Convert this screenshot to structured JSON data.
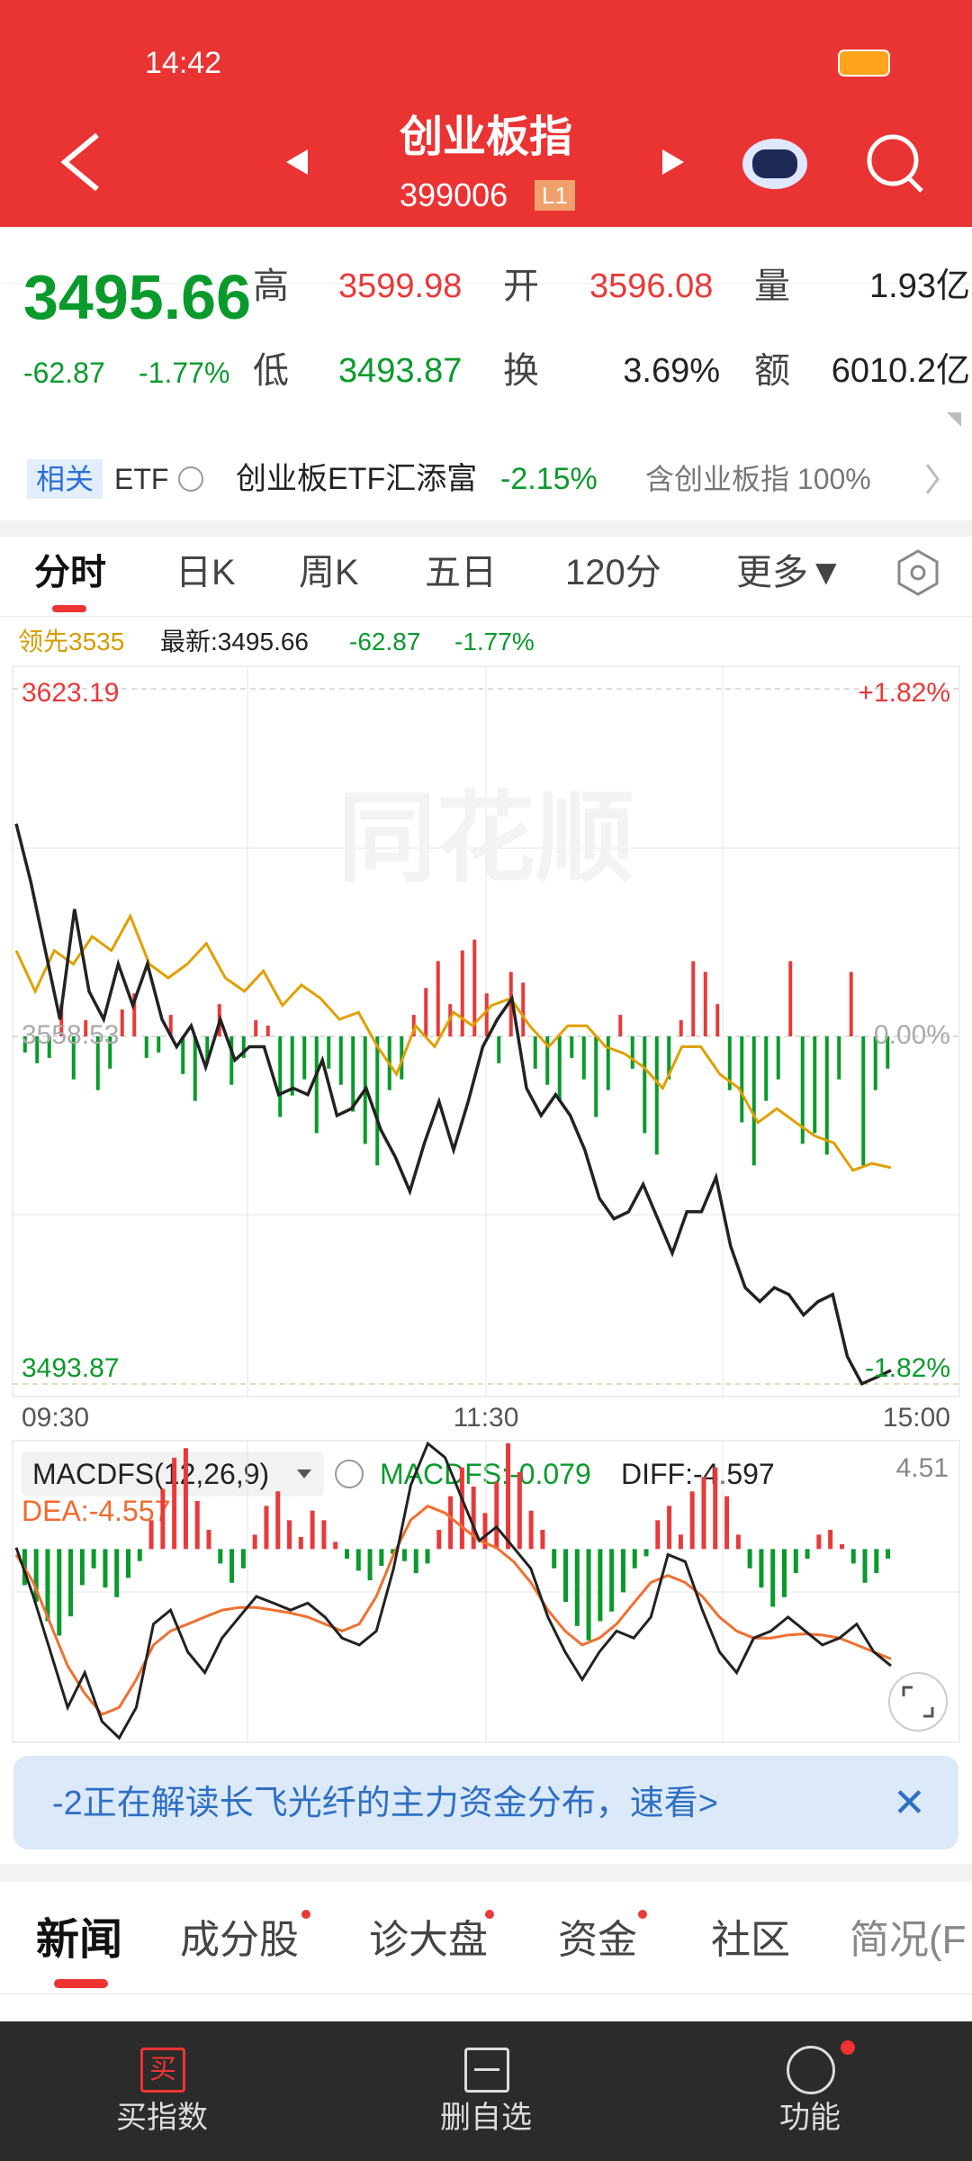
{
  "status_bar": {
    "time": "14:42"
  },
  "header": {
    "title": "创业板指",
    "code": "399006",
    "badge": "L1"
  },
  "quote": {
    "price": "3495.66",
    "change": "-62.87",
    "change_pct": "-1.77%",
    "fields": [
      {
        "label": "高",
        "value": "3599.98"
      },
      {
        "label": "开",
        "value": "3596.08"
      },
      {
        "label": "量",
        "value": "1.93亿"
      },
      {
        "label": "低",
        "value": "3493.87"
      },
      {
        "label": "换",
        "value": "3.69%"
      },
      {
        "label": "额",
        "value": "6010.2亿"
      }
    ]
  },
  "etf": {
    "tag": "相关",
    "label": "ETF",
    "fund": "创业板ETF汇添富",
    "fund_change": "-2.15%",
    "contains": "含创业板指 100%"
  },
  "tabs": [
    "分时",
    "日K",
    "周K",
    "五日",
    "120分",
    "更多▼"
  ],
  "legend": {
    "lead": "领先3535",
    "latest": "最新:3495.66",
    "change": "-62.87",
    "pct": "-1.77%"
  },
  "chart": {
    "watermark": "同花顺",
    "ylim": [
      3493.87,
      3623.19
    ],
    "price_ticks": [
      3623.19,
      3558.53,
      3493.87
    ],
    "pct_ticks": [
      "+1.82%",
      "0.00%",
      "-1.82%"
    ],
    "time_labels": [
      "09:30",
      "11:30",
      "15:00"
    ],
    "price_line": [
      3598.1,
      3587.3,
      3574.5,
      3561.7,
      3582.2,
      3566.9,
      3561.7,
      3572.0,
      3564.3,
      3572.0,
      3561.7,
      3556.6,
      3560.5,
      3552.8,
      3561.7,
      3554.1,
      3556.6,
      3556.6,
      3547.7,
      3548.9,
      3547.7,
      3554.1,
      3543.8,
      3545.1,
      3548.9,
      3541.2,
      3536.1,
      3529.7,
      3538.7,
      3546.4,
      3537.4,
      3546.4,
      3556.6,
      3561.7,
      3565.6,
      3548.9,
      3543.8,
      3547.7,
      3543.8,
      3537.4,
      3528.4,
      3524.6,
      3525.9,
      3531.0,
      3524.6,
      3518.2,
      3525.9,
      3525.9,
      3532.3,
      3519.5,
      3511.8,
      3509.2,
      3511.8,
      3510.5,
      3506.7,
      3509.2,
      3510.5,
      3499.0,
      3493.9,
      3495.1,
      3496.4
    ],
    "lead_line": [
      3574.5,
      3566.9,
      3574.5,
      3572.0,
      3577.1,
      3574.5,
      3580.9,
      3572.0,
      3569.4,
      3572.0,
      3575.8,
      3569.4,
      3566.9,
      3570.7,
      3564.3,
      3568.1,
      3565.6,
      3561.7,
      3563.0,
      3556.6,
      3551.5,
      3560.5,
      3556.6,
      3563.0,
      3560.5,
      3564.3,
      3565.6,
      3560.5,
      3556.6,
      3560.5,
      3560.5,
      3556.6,
      3555.3,
      3552.8,
      3548.9,
      3556.6,
      3556.6,
      3551.5,
      3548.9,
      3542.5,
      3545.1,
      3542.5,
      3540.0,
      3538.7,
      3533.6,
      3534.9,
      3534.1
    ],
    "bars": [
      -3,
      -5,
      -4,
      6,
      -8,
      3,
      -10,
      -6,
      5,
      8,
      -4,
      -3,
      4,
      -7,
      -12,
      -5,
      6,
      -9,
      -4,
      3,
      2,
      -15,
      -11,
      -8,
      -18,
      -6,
      -9,
      -14,
      -20,
      -24,
      -10,
      -8,
      4,
      9,
      14,
      6,
      16,
      18,
      8,
      -5,
      12,
      10,
      -6,
      -9,
      -12,
      -4,
      -8,
      -15,
      -10,
      4,
      -6,
      -18,
      -22,
      -8,
      3,
      14,
      12,
      6,
      -10,
      -16,
      -24,
      -12,
      -8,
      14,
      -20,
      -18,
      -22,
      -8,
      12,
      -24,
      -10,
      -6
    ]
  },
  "macd": {
    "title": "MACDFS(12,26,9)",
    "macd_label": "MACDFS:-0.079",
    "diff_label": "DIFF:-4.597",
    "dea_label": "DEA:-4.557",
    "ylim": [
      -8.04,
      4.51
    ],
    "bars": [
      -1.5,
      -2.2,
      -3.0,
      -3.6,
      -2.8,
      -1.5,
      -0.8,
      -1.6,
      -2.0,
      -1.2,
      -0.5,
      1.2,
      2.5,
      3.8,
      4.2,
      2.0,
      0.8,
      -0.6,
      -1.4,
      -0.8,
      0.6,
      1.8,
      2.4,
      1.2,
      0.5,
      1.6,
      1.2,
      0.3,
      -0.4,
      -0.9,
      -1.3,
      -0.7,
      -0.2,
      -0.5,
      -1.0,
      -0.6,
      0.8,
      2.2,
      3.4,
      2.6,
      1.5,
      2.8,
      4.4,
      3.2,
      1.6,
      0.8,
      -0.8,
      -2.2,
      -3.2,
      -3.8,
      -3.0,
      -2.6,
      -1.8,
      -0.8,
      -0.3,
      1.2,
      1.8,
      0.6,
      2.4,
      3.0,
      3.4,
      2.2,
      0.6,
      -0.8,
      -1.6,
      -2.4,
      -2.0,
      -1.0,
      -0.4,
      0.6,
      0.8,
      0.2,
      -0.6,
      -1.4,
      -1.0,
      -0.4
    ],
    "diff": [
      0.06,
      -1.97,
      -4.28,
      -6.59,
      -5.14,
      -7.17,
      -7.86,
      -6.59,
      -3.12,
      -2.54,
      -4.28,
      -5.14,
      -3.7,
      -2.83,
      -1.97,
      -2.25,
      -2.54,
      -2.25,
      -2.83,
      -3.7,
      -3.99,
      -3.41,
      -0.81,
      2.66,
      4.39,
      3.81,
      2.08,
      0.35,
      0.92,
      0.06,
      -0.81,
      -2.83,
      -4.28,
      -5.43,
      -4.28,
      -3.41,
      -3.7,
      -2.83,
      -0.23,
      -0.52,
      -2.54,
      -4.28,
      -5.14,
      -3.7,
      -3.41,
      -2.83,
      -3.41,
      -3.99,
      -3.7,
      -3.12,
      -4.28,
      -4.86
    ],
    "dea": [
      -0.23,
      -1.39,
      -3.12,
      -4.86,
      -6.01,
      -6.88,
      -6.59,
      -5.43,
      -3.99,
      -3.41,
      -3.12,
      -2.83,
      -2.54,
      -2.43,
      -2.43,
      -2.54,
      -2.66,
      -2.83,
      -3.12,
      -3.41,
      -3.12,
      -1.97,
      -0.23,
      1.21,
      1.79,
      1.5,
      0.92,
      0.35,
      0.06,
      -0.52,
      -1.39,
      -2.54,
      -3.41,
      -3.99,
      -3.7,
      -3.12,
      -2.25,
      -1.39,
      -1.1,
      -1.39,
      -1.97,
      -2.83,
      -3.41,
      -3.7,
      -3.7,
      -3.58,
      -3.53,
      -3.58,
      -3.7,
      -3.99,
      -4.28,
      -4.57
    ]
  },
  "banner": {
    "text": "-2正在解读长飞光纤的主力资金分布，速看>"
  },
  "news_tabs": [
    "新闻",
    "成分股",
    "诊大盘",
    "资金",
    "社区",
    "简况(F"
  ],
  "bottom_nav": {
    "buy_icon": "买",
    "items": [
      "买指数",
      "删自选",
      "功能"
    ]
  }
}
